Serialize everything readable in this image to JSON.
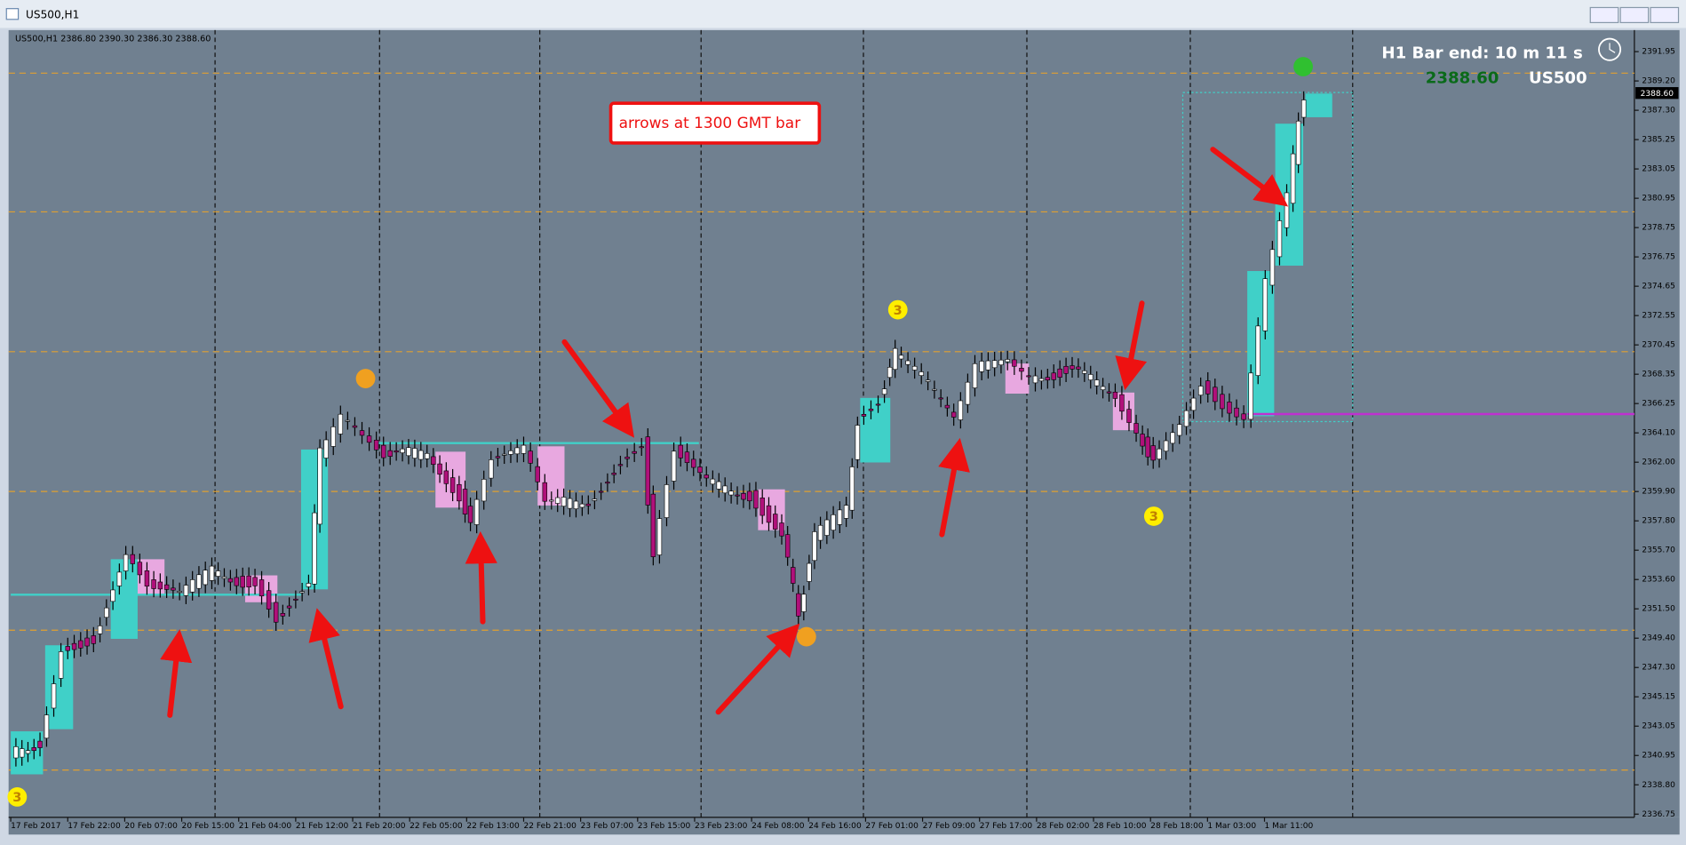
{
  "window": {
    "title": "US500,H1"
  },
  "chart_header": "US500,H1  2386.80 2390.30 2386.30 2388.60",
  "bar_timer": "H1 Bar end: 10 m 11 s",
  "price": "2388.60",
  "symbol": "US500",
  "annotation": "arrows at 1300 GMT bar",
  "current_price_label": "2388.60",
  "price_axis": [
    "2391.95",
    "2389.20",
    "2387.30",
    "2385.25",
    "2383.05",
    "2380.95",
    "2378.75",
    "2376.75",
    "2374.65",
    "2372.55",
    "2370.45",
    "2368.35",
    "2366.25",
    "2364.10",
    "2362.00",
    "2359.90",
    "2357.80",
    "2355.70",
    "2353.60",
    "2351.50",
    "2349.40",
    "2347.30",
    "2345.15",
    "2343.05",
    "2340.95",
    "2338.80",
    "2336.75"
  ],
  "time_axis": [
    "17 Feb 2017",
    "17 Feb 22:00",
    "20 Feb 07:00",
    "20 Feb 15:00",
    "21 Feb 04:00",
    "21 Feb 12:00",
    "21 Feb 20:00",
    "22 Feb 05:00",
    "22 Feb 13:00",
    "22 Feb 21:00",
    "23 Feb 07:00",
    "23 Feb 15:00",
    "23 Feb 23:00",
    "24 Feb 08:00",
    "24 Feb 16:00",
    "27 Feb 01:00",
    "27 Feb 09:00",
    "27 Feb 17:00",
    "28 Feb 02:00",
    "28 Feb 10:00",
    "28 Feb 18:00",
    "1 Mar 03:00",
    "1 Mar 11:00"
  ],
  "markers": [
    "3",
    "3",
    "3"
  ]
}
